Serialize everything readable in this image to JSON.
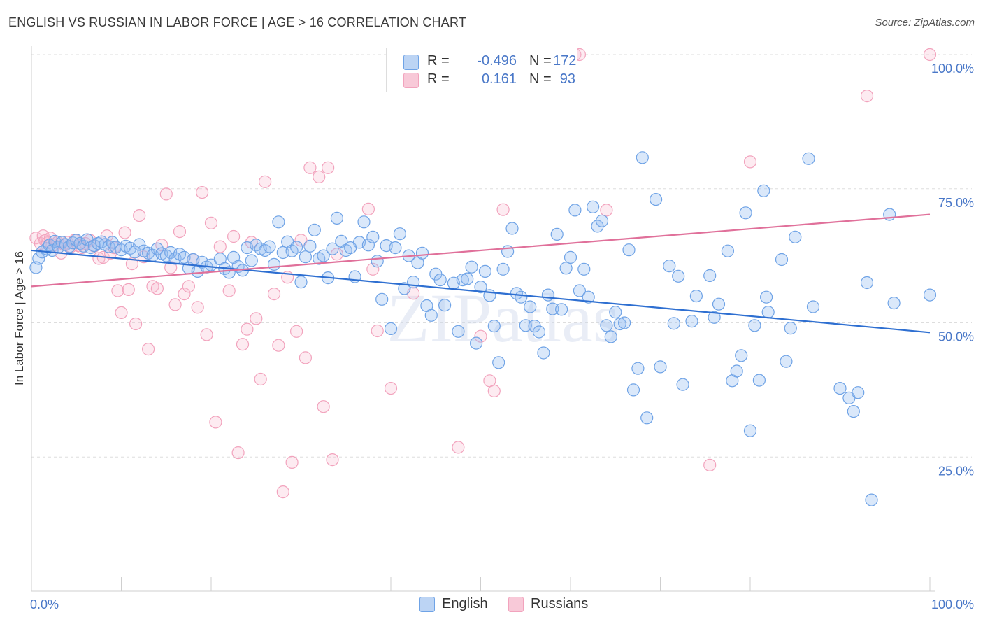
{
  "title": "ENGLISH VS RUSSIAN IN LABOR FORCE | AGE > 16 CORRELATION CHART",
  "source": "Source: ZipAtlas.com",
  "watermark": "ZIPatlas",
  "legend": {
    "r_label": "R =",
    "n_label": "N =",
    "rows": [
      {
        "r": "-0.496",
        "n": "172"
      },
      {
        "r": "0.161",
        "n": "93"
      }
    ]
  },
  "chart_data": {
    "type": "scatter",
    "title": "ENGLISH VS RUSSIAN IN LABOR FORCE | AGE > 16 CORRELATION CHART",
    "xlabel": "",
    "ylabel": "In Labor Force | Age > 16",
    "xlim": [
      0,
      100
    ],
    "ylim": [
      0,
      100
    ],
    "x_tick_labels": [
      "0.0%",
      "100.0%"
    ],
    "y_tick_labels": [
      "25.0%",
      "50.0%",
      "75.0%",
      "100.0%"
    ],
    "y_ticks": [
      25,
      50,
      75,
      100
    ],
    "grid": true,
    "legend_position": "bottom-center",
    "colors": {
      "English": "#6fa3e6",
      "Russians": "#f2a3bd",
      "english_line": "#2e6fd1",
      "russians_line": "#e0709a",
      "tick": "#4a78c8"
    },
    "series": [
      {
        "name": "English",
        "r": -0.496,
        "n": 172,
        "trend": {
          "x": [
            0,
            100
          ],
          "y": [
            63.5,
            48.2
          ]
        },
        "points": [
          [
            0.5,
            60.3
          ],
          [
            0.8,
            62.0
          ],
          [
            1.2,
            63.2
          ],
          [
            1.7,
            63.8
          ],
          [
            2.0,
            64.5
          ],
          [
            2.3,
            63.5
          ],
          [
            2.6,
            65.2
          ],
          [
            3.0,
            64.1
          ],
          [
            3.4,
            65.0
          ],
          [
            3.8,
            64.6
          ],
          [
            4.2,
            64.2
          ],
          [
            4.6,
            64.9
          ],
          [
            5.0,
            65.4
          ],
          [
            5.4,
            64.8
          ],
          [
            5.8,
            64.3
          ],
          [
            6.2,
            65.5
          ],
          [
            6.6,
            64.0
          ],
          [
            7.0,
            64.4
          ],
          [
            7.4,
            64.8
          ],
          [
            7.8,
            65.1
          ],
          [
            8.2,
            64.6
          ],
          [
            8.6,
            64.2
          ],
          [
            9.0,
            65.0
          ],
          [
            9.4,
            64.1
          ],
          [
            10.0,
            63.6
          ],
          [
            10.5,
            64.3
          ],
          [
            11.0,
            63.9
          ],
          [
            11.5,
            63.2
          ],
          [
            12.0,
            64.6
          ],
          [
            12.5,
            63.4
          ],
          [
            13.0,
            63.0
          ],
          [
            13.5,
            62.6
          ],
          [
            14.0,
            63.8
          ],
          [
            14.5,
            62.9
          ],
          [
            15.0,
            62.5
          ],
          [
            15.5,
            63.1
          ],
          [
            16.0,
            62.0
          ],
          [
            16.5,
            62.8
          ],
          [
            17.0,
            62.2
          ],
          [
            17.5,
            60.2
          ],
          [
            18.0,
            61.8
          ],
          [
            18.5,
            59.6
          ],
          [
            19.0,
            61.3
          ],
          [
            19.5,
            60.4
          ],
          [
            20.0,
            60.8
          ],
          [
            21.0,
            61.9
          ],
          [
            21.5,
            60.1
          ],
          [
            22.0,
            59.4
          ],
          [
            22.5,
            62.2
          ],
          [
            23.0,
            60.5
          ],
          [
            23.5,
            59.8
          ],
          [
            24.0,
            64.0
          ],
          [
            24.5,
            61.6
          ],
          [
            25.0,
            64.5
          ],
          [
            25.5,
            63.8
          ],
          [
            26.0,
            63.5
          ],
          [
            26.5,
            64.2
          ],
          [
            27.0,
            60.9
          ],
          [
            27.5,
            68.8
          ],
          [
            28.0,
            63.1
          ],
          [
            28.5,
            65.1
          ],
          [
            29.0,
            63.4
          ],
          [
            29.5,
            64.1
          ],
          [
            30.0,
            57.6
          ],
          [
            30.5,
            62.3
          ],
          [
            31.0,
            64.3
          ],
          [
            31.5,
            67.3
          ],
          [
            32.0,
            62.0
          ],
          [
            32.5,
            62.5
          ],
          [
            33.0,
            58.4
          ],
          [
            33.5,
            63.8
          ],
          [
            34.0,
            69.5
          ],
          [
            34.5,
            65.2
          ],
          [
            35.0,
            63.5
          ],
          [
            35.5,
            64.0
          ],
          [
            36.0,
            58.6
          ],
          [
            36.5,
            65.0
          ],
          [
            37.0,
            68.8
          ],
          [
            37.5,
            64.5
          ],
          [
            38.0,
            66.0
          ],
          [
            38.5,
            61.5
          ],
          [
            39.0,
            54.4
          ],
          [
            39.5,
            64.4
          ],
          [
            40.0,
            48.9
          ],
          [
            40.5,
            64.0
          ],
          [
            41.0,
            66.6
          ],
          [
            41.5,
            56.4
          ],
          [
            42.0,
            62.5
          ],
          [
            42.5,
            57.6
          ],
          [
            43.0,
            61.2
          ],
          [
            43.5,
            63.0
          ],
          [
            44.0,
            53.2
          ],
          [
            44.5,
            51.4
          ],
          [
            45.0,
            59.1
          ],
          [
            45.5,
            58.0
          ],
          [
            46.0,
            53.3
          ],
          [
            47.0,
            57.4
          ],
          [
            47.5,
            48.4
          ],
          [
            48.0,
            58.0
          ],
          [
            48.5,
            58.2
          ],
          [
            49.0,
            60.4
          ],
          [
            49.5,
            46.2
          ],
          [
            50.0,
            56.7
          ],
          [
            50.5,
            59.6
          ],
          [
            51.0,
            55.1
          ],
          [
            51.5,
            49.4
          ],
          [
            52.0,
            42.6
          ],
          [
            52.5,
            60.0
          ],
          [
            53.0,
            63.3
          ],
          [
            53.5,
            67.6
          ],
          [
            54.0,
            55.5
          ],
          [
            54.5,
            54.8
          ],
          [
            55.0,
            49.5
          ],
          [
            55.5,
            53.0
          ],
          [
            56.0,
            49.4
          ],
          [
            56.5,
            48.3
          ],
          [
            57.0,
            44.4
          ],
          [
            57.5,
            55.2
          ],
          [
            58.0,
            52.6
          ],
          [
            58.5,
            66.5
          ],
          [
            59.0,
            52.5
          ],
          [
            59.5,
            60.2
          ],
          [
            60.0,
            62.2
          ],
          [
            60.5,
            71.0
          ],
          [
            61.0,
            56.0
          ],
          [
            61.5,
            60.0
          ],
          [
            62.0,
            54.8
          ],
          [
            62.5,
            71.6
          ],
          [
            63.0,
            68.0
          ],
          [
            63.5,
            69.0
          ],
          [
            64.0,
            49.5
          ],
          [
            64.5,
            47.4
          ],
          [
            65.0,
            52.0
          ],
          [
            65.5,
            49.8
          ],
          [
            66.0,
            50.0
          ],
          [
            66.5,
            63.6
          ],
          [
            67.0,
            37.5
          ],
          [
            67.5,
            41.5
          ],
          [
            68.0,
            80.8
          ],
          [
            68.5,
            32.3
          ],
          [
            69.5,
            73.0
          ],
          [
            70.0,
            41.8
          ],
          [
            71.0,
            60.6
          ],
          [
            71.5,
            49.9
          ],
          [
            72.0,
            58.7
          ],
          [
            72.5,
            38.5
          ],
          [
            73.5,
            50.3
          ],
          [
            74.0,
            55.0
          ],
          [
            75.5,
            58.8
          ],
          [
            76.0,
            51.0
          ],
          [
            76.5,
            53.5
          ],
          [
            77.5,
            63.4
          ],
          [
            78.0,
            39.2
          ],
          [
            78.5,
            41.0
          ],
          [
            79.0,
            43.9
          ],
          [
            79.5,
            70.5
          ],
          [
            80.0,
            29.9
          ],
          [
            80.5,
            49.5
          ],
          [
            81.0,
            39.3
          ],
          [
            81.5,
            74.6
          ],
          [
            81.8,
            54.8
          ],
          [
            82.0,
            52.0
          ],
          [
            83.5,
            61.8
          ],
          [
            84.0,
            42.8
          ],
          [
            84.5,
            49.0
          ],
          [
            85.0,
            66.0
          ],
          [
            86.5,
            80.6
          ],
          [
            87.0,
            53.0
          ],
          [
            90.0,
            37.8
          ],
          [
            91.0,
            36.0
          ],
          [
            91.5,
            33.5
          ],
          [
            92.0,
            37.0
          ],
          [
            93.0,
            57.5
          ],
          [
            93.5,
            17.0
          ],
          [
            95.5,
            70.2
          ],
          [
            96.0,
            53.7
          ],
          [
            100.0,
            55.2
          ]
        ]
      },
      {
        "name": "Russians",
        "r": 0.161,
        "n": 93,
        "trend": {
          "x": [
            0,
            100
          ],
          "y": [
            56.8,
            70.2
          ]
        },
        "points": [
          [
            0.5,
            65.8
          ],
          [
            1.0,
            64.8
          ],
          [
            1.3,
            66.2
          ],
          [
            1.5,
            65.3
          ],
          [
            1.8,
            64.9
          ],
          [
            2.1,
            65.8
          ],
          [
            2.5,
            64.5
          ],
          [
            2.9,
            65.0
          ],
          [
            3.3,
            63.0
          ],
          [
            3.6,
            64.6
          ],
          [
            4.0,
            65.0
          ],
          [
            4.4,
            64.2
          ],
          [
            4.8,
            65.4
          ],
          [
            5.2,
            64.4
          ],
          [
            5.6,
            64.0
          ],
          [
            6.0,
            64.8
          ],
          [
            6.5,
            65.4
          ],
          [
            7.0,
            64.3
          ],
          [
            7.5,
            62.0
          ],
          [
            8.0,
            62.2
          ],
          [
            8.4,
            66.2
          ],
          [
            8.8,
            63.0
          ],
          [
            9.2,
            64.0
          ],
          [
            9.6,
            56.0
          ],
          [
            10.0,
            51.9
          ],
          [
            10.4,
            66.8
          ],
          [
            10.8,
            56.2
          ],
          [
            11.2,
            61.0
          ],
          [
            11.6,
            49.8
          ],
          [
            12.0,
            70.0
          ],
          [
            12.5,
            62.3
          ],
          [
            13.0,
            45.1
          ],
          [
            13.5,
            56.8
          ],
          [
            14.0,
            56.4
          ],
          [
            14.5,
            64.5
          ],
          [
            15.0,
            74.0
          ],
          [
            15.5,
            60.3
          ],
          [
            16.0,
            53.4
          ],
          [
            16.5,
            67.0
          ],
          [
            17.0,
            55.4
          ],
          [
            17.5,
            56.8
          ],
          [
            18.0,
            61.8
          ],
          [
            18.5,
            52.9
          ],
          [
            19.0,
            74.3
          ],
          [
            19.5,
            47.8
          ],
          [
            20.0,
            68.6
          ],
          [
            20.5,
            31.5
          ],
          [
            21.0,
            64.2
          ],
          [
            22.0,
            56.0
          ],
          [
            22.5,
            66.1
          ],
          [
            23.0,
            25.8
          ],
          [
            23.5,
            46.0
          ],
          [
            24.0,
            48.8
          ],
          [
            24.5,
            65.0
          ],
          [
            25.0,
            50.8
          ],
          [
            25.5,
            39.5
          ],
          [
            26.0,
            76.3
          ],
          [
            27.0,
            55.4
          ],
          [
            27.5,
            45.8
          ],
          [
            28.0,
            18.5
          ],
          [
            28.5,
            58.5
          ],
          [
            29.0,
            24.0
          ],
          [
            29.5,
            48.4
          ],
          [
            30.0,
            65.4
          ],
          [
            30.5,
            43.5
          ],
          [
            31.0,
            78.9
          ],
          [
            32.0,
            77.2
          ],
          [
            32.5,
            34.4
          ],
          [
            33.0,
            78.9
          ],
          [
            33.5,
            24.5
          ],
          [
            34.0,
            62.8
          ],
          [
            37.5,
            71.2
          ],
          [
            38.0,
            60.0
          ],
          [
            38.5,
            48.5
          ],
          [
            40.0,
            37.8
          ],
          [
            42.5,
            55.5
          ],
          [
            47.5,
            26.8
          ],
          [
            50.0,
            47.5
          ],
          [
            51.0,
            39.2
          ],
          [
            51.5,
            37.3
          ],
          [
            52.5,
            71.1
          ],
          [
            60.5,
            100.0
          ],
          [
            61.0,
            100.0
          ],
          [
            64.0,
            71.0
          ],
          [
            75.5,
            23.5
          ],
          [
            80.0,
            80.0
          ],
          [
            93.0,
            92.3
          ],
          [
            100.0,
            100.0
          ]
        ]
      }
    ]
  }
}
